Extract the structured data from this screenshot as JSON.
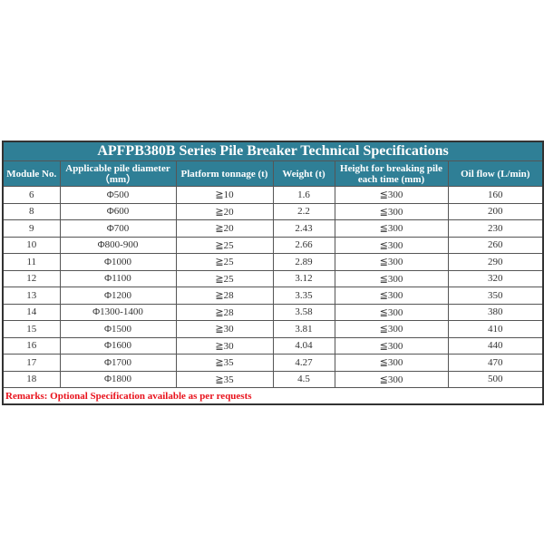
{
  "title": "APFPB380B Series Pile Breaker Technical Specifications",
  "headers": [
    "Module No.",
    "Applicable pile diameter（mm）",
    "Platform tonnage (t)",
    "Weight (t)",
    "Height for breaking pile each time (mm)",
    "Oil flow (L/min)"
  ],
  "rows": [
    [
      "6",
      "Φ500",
      "≧10",
      "1.6",
      "≦300",
      "160"
    ],
    [
      "8",
      "Φ600",
      "≧20",
      "2.2",
      "≦300",
      "200"
    ],
    [
      "9",
      "Φ700",
      "≧20",
      "2.43",
      "≦300",
      "230"
    ],
    [
      "10",
      "Φ800-900",
      "≧25",
      "2.66",
      "≦300",
      "260"
    ],
    [
      "11",
      "Φ1000",
      "≧25",
      "2.89",
      "≦300",
      "290"
    ],
    [
      "12",
      "Φ1100",
      "≧25",
      "3.12",
      "≦300",
      "320"
    ],
    [
      "13",
      "Φ1200",
      "≧28",
      "3.35",
      "≦300",
      "350"
    ],
    [
      "14",
      "Φ1300-1400",
      "≧28",
      "3.58",
      "≦300",
      "380"
    ],
    [
      "15",
      "Φ1500",
      "≧30",
      "3.81",
      "≦300",
      "410"
    ],
    [
      "16",
      "Φ1600",
      "≧30",
      "4.04",
      "≦300",
      "440"
    ],
    [
      "17",
      "Φ1700",
      "≧35",
      "4.27",
      "≦300",
      "470"
    ],
    [
      "18",
      "Φ1800",
      "≧35",
      "4.5",
      "≦300",
      "500"
    ]
  ],
  "remarks": "Remarks: Optional Specification available as per requests",
  "colors": {
    "header_bg": "#2f7f96",
    "remarks": "#e8121c"
  }
}
